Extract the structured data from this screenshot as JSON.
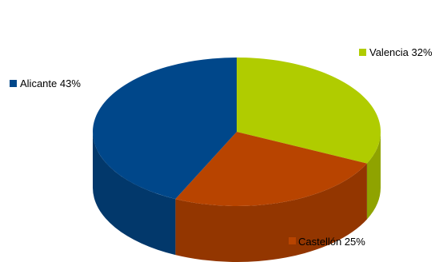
{
  "chart_data": {
    "type": "pie",
    "style": "3d",
    "title": "",
    "slices": [
      {
        "name": "Valencia",
        "value": 32,
        "label": "Valencia 32%",
        "color": "#B0CC00",
        "side_color": "#8FA300"
      },
      {
        "name": "Castellón",
        "value": 25,
        "label": "Castellón  25%",
        "color": "#B84400",
        "side_color": "#933600"
      },
      {
        "name": "Alicante",
        "value": 43,
        "label": "Alicante  43%",
        "color": "#00478A",
        "side_color": "#02386B"
      }
    ],
    "legend": "labels-outside"
  }
}
